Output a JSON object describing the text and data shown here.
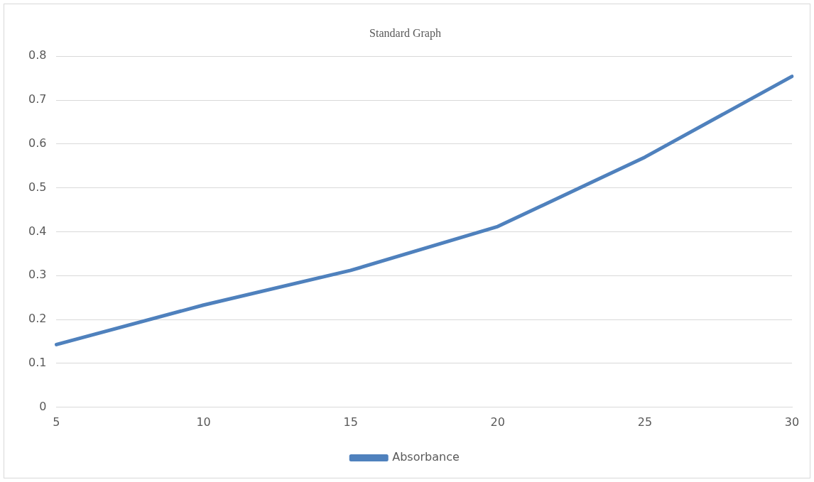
{
  "chart_data": {
    "type": "line",
    "title": "Standard Graph",
    "categories": [
      "5",
      "10",
      "15",
      "20",
      "25",
      "30"
    ],
    "series": [
      {
        "name": "Absorbance",
        "color": "#4f81bd",
        "values": [
          0.143,
          0.233,
          0.312,
          0.412,
          0.57,
          0.754
        ]
      }
    ],
    "ylim": [
      0,
      0.8
    ],
    "yticks": [
      0,
      0.1,
      0.2,
      0.3,
      0.4,
      0.5,
      0.6,
      0.7,
      0.8
    ],
    "grid": "y",
    "legend": "bottom",
    "marker": "none",
    "line_style": "solid"
  }
}
